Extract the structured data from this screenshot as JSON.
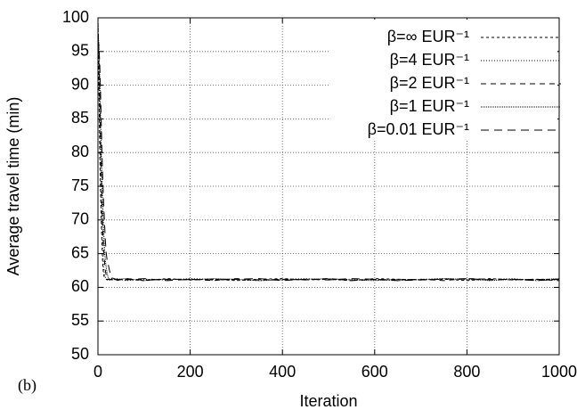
{
  "chart_data": {
    "type": "line",
    "annotation": "(b)",
    "x_label": "Iteration",
    "y_label": "Average travel time (min)",
    "xlim": [
      0,
      1000
    ],
    "xticks": [
      0,
      200,
      400,
      600,
      800,
      1000
    ],
    "ylim": [
      50,
      100
    ],
    "yticks": [
      50,
      55,
      60,
      65,
      70,
      75,
      80,
      85,
      90,
      95,
      100
    ],
    "grid": true,
    "legend": "top-right",
    "x": [
      0,
      2,
      4,
      6,
      8,
      10,
      12,
      14,
      16,
      18,
      20,
      22,
      25,
      30,
      40,
      60,
      100,
      150,
      200,
      250,
      300,
      350,
      400,
      450,
      500,
      550,
      600,
      650,
      700,
      750,
      800,
      850,
      900,
      950,
      1000
    ],
    "series": [
      {
        "name": "β=∞ EUR⁻¹",
        "color": "#000000",
        "dash": "3,3",
        "values": [
          100,
          90,
          80,
          73,
          68,
          64,
          62,
          61.5,
          61.3,
          61.2,
          61.1,
          61.2,
          61.0,
          61.3,
          61.1,
          61.2,
          61.0,
          61.3,
          61.1,
          61.2,
          61.0,
          61.2,
          61.3,
          61.1,
          61.2,
          61.0,
          61.3,
          61.2,
          61.1,
          61.2,
          61.0,
          61.3,
          61.1,
          61.2,
          61.2
        ]
      },
      {
        "name": "β=4 EUR⁻¹",
        "color": "#000000",
        "dash": "1,2",
        "values": [
          100,
          92,
          83,
          76,
          70,
          66,
          63,
          62,
          61.5,
          61.3,
          61.2,
          61.1,
          61.2,
          61.1,
          61.3,
          61.0,
          61.2,
          61.1,
          61.3,
          61.2,
          61.1,
          61.0,
          61.2,
          61.3,
          61.1,
          61.2,
          61.1,
          61.0,
          61.2,
          61.3,
          61.1,
          61.2,
          61.3,
          61.0,
          61.1
        ]
      },
      {
        "name": "β=2 EUR⁻¹",
        "color": "#000000",
        "dash": "6,5",
        "values": [
          99,
          95,
          88,
          80,
          74,
          69,
          66,
          64,
          62.5,
          61.8,
          61.4,
          61.2,
          61.1,
          61.2,
          61.0,
          61.3,
          61.1,
          61.2,
          61.2,
          61.0,
          61.3,
          61.1,
          61.2,
          61.1,
          61.3,
          61.0,
          61.2,
          61.1,
          61.2,
          61.0,
          61.3,
          61.2,
          61.1,
          61.2,
          61.0
        ]
      },
      {
        "name": "β=1 EUR⁻¹",
        "color": "#000000",
        "dash": "1,1",
        "values": [
          98,
          96,
          91,
          84,
          78,
          73,
          69,
          66,
          64,
          63,
          62,
          61.5,
          61.2,
          61.1,
          61.2,
          61.3,
          61.0,
          61.2,
          61.1,
          61.3,
          61.2,
          61.0,
          61.1,
          61.2,
          61.3,
          61.1,
          61.0,
          61.2,
          61.1,
          61.3,
          61.2,
          61.0,
          61.2,
          61.1,
          61.3
        ]
      },
      {
        "name": "β=0.01 EUR⁻¹",
        "color": "#000000",
        "dash": "9,6",
        "values": [
          97,
          96,
          93,
          88,
          82,
          77,
          73,
          70,
          67,
          65,
          64,
          63.5,
          62.5,
          61.4,
          61.2,
          61.1,
          61.3,
          61.0,
          61.2,
          61.1,
          61.2,
          61.3,
          61.0,
          61.2,
          61.1,
          61.3,
          61.2,
          61.0,
          61.1,
          61.2,
          61.3,
          61.1,
          61.2,
          61.0,
          61.2
        ]
      }
    ]
  }
}
